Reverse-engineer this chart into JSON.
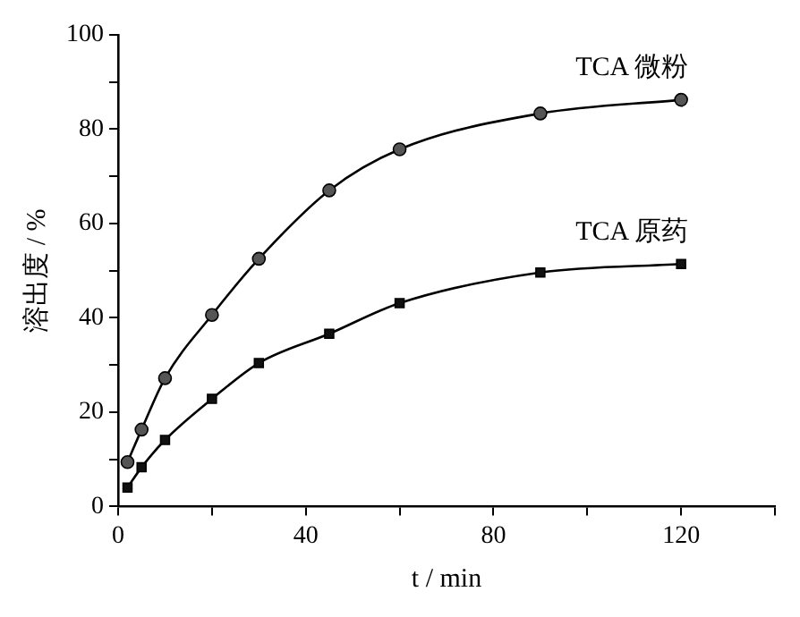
{
  "chart_data": {
    "type": "line",
    "xlabel": "t / min",
    "ylabel": "溶出度 / %",
    "x": [
      2,
      5,
      10,
      20,
      30,
      45,
      60,
      90,
      120
    ],
    "series": [
      {
        "name": "TCA 微粉",
        "color": "#555555",
        "marker": "circle",
        "values": [
          9.4,
          16.3,
          27.2,
          40.6,
          52.5,
          67,
          75.7,
          83.3,
          86.2
        ]
      },
      {
        "name": "TCA 原药",
        "color": "#111111",
        "marker": "square",
        "values": [
          4,
          8.3,
          14.1,
          22.8,
          30.4,
          36.6,
          43.1,
          49.6,
          51.4
        ]
      }
    ],
    "xlim": [
      0,
      140
    ],
    "xticks": [
      0,
      {
        "value": 20,
        "label": null
      },
      40,
      {
        "value": 60,
        "label": null
      },
      80,
      {
        "value": 100,
        "label": null
      },
      120,
      {
        "value": 140,
        "label": null
      }
    ],
    "ylim": [
      0,
      100
    ],
    "yticks": [
      0,
      {
        "value": 10,
        "label": null
      },
      20,
      {
        "value": 30,
        "label": null
      },
      40,
      {
        "value": 50,
        "label": null
      },
      60,
      {
        "value": 70,
        "label": null
      },
      80,
      {
        "value": 90,
        "label": null
      },
      100
    ],
    "grid": false,
    "legend": false,
    "line_style": "solid"
  }
}
